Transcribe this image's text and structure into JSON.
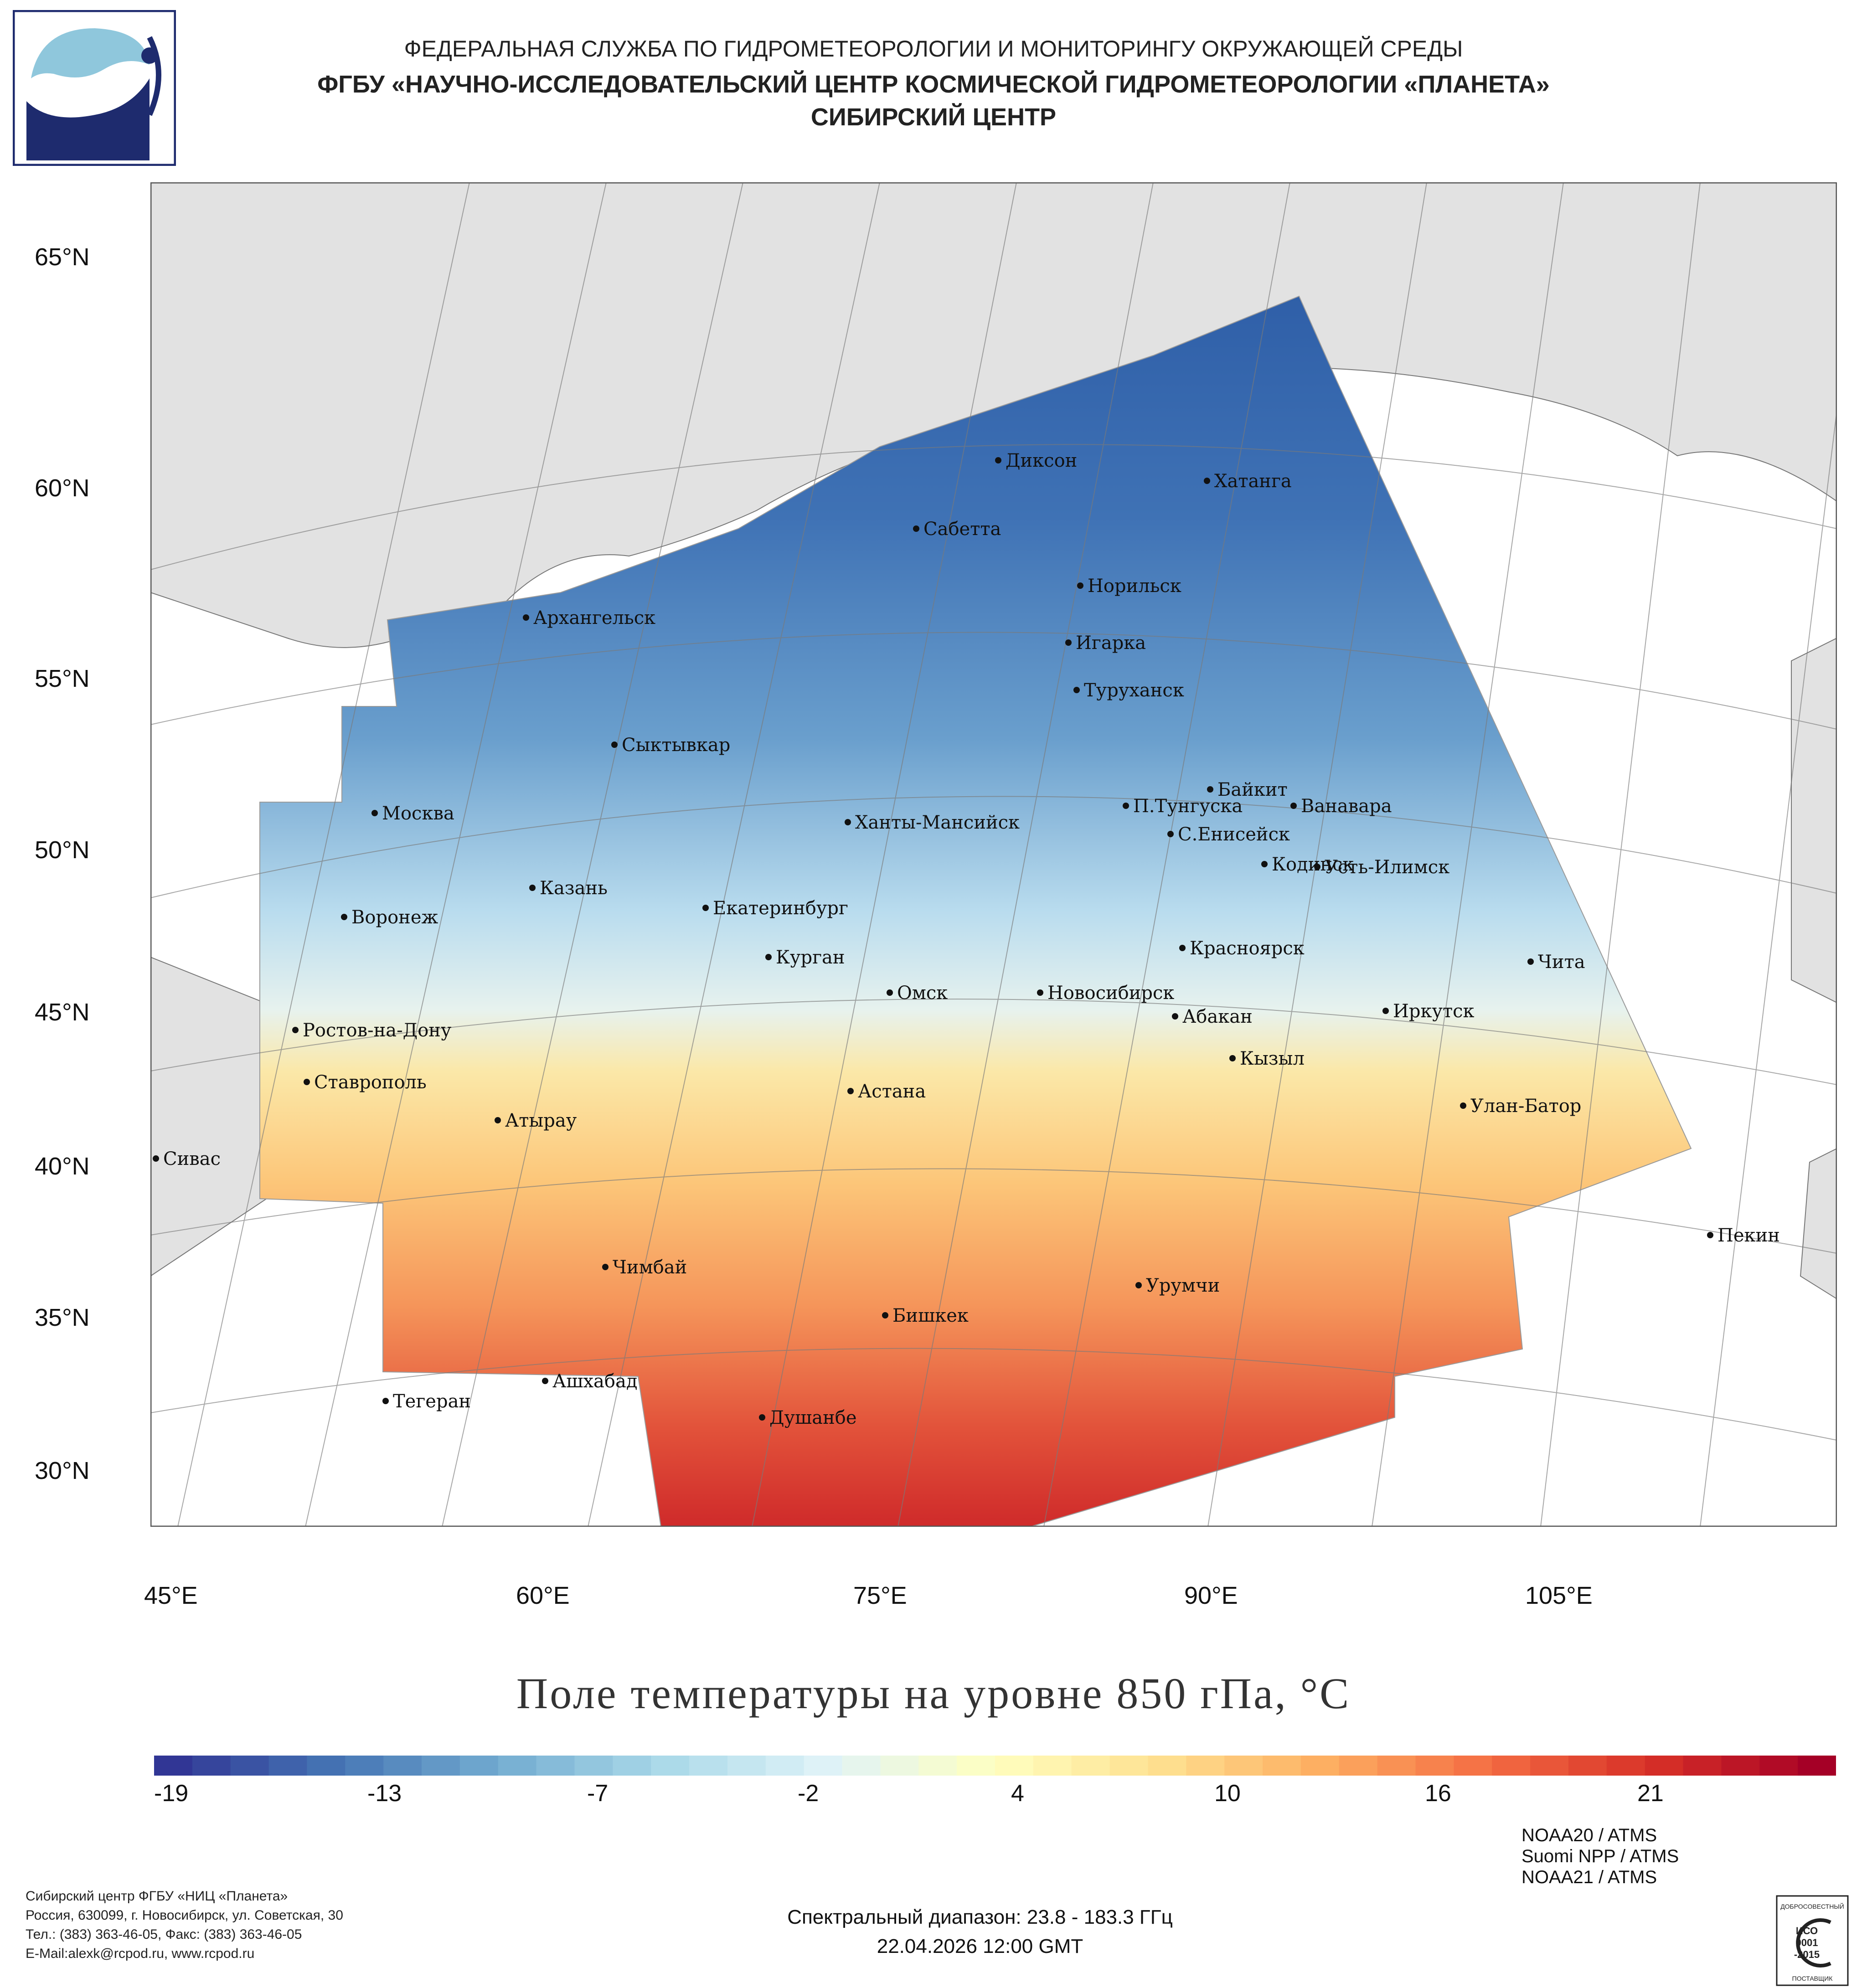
{
  "header": {
    "line1": "ФЕДЕРАЛЬНАЯ СЛУЖБА ПО ГИДРОМЕТЕОРОЛОГИИ И МОНИТОРИНГУ ОКРУЖАЮЩЕЙ СРЕДЫ",
    "line2": "ФГБУ «НАУЧНО-ИССЛЕДОВАТЕЛЬСКИЙ ЦЕНТР КОСМИЧЕСКОЙ ГИДРОМЕТЕОРОЛОГИИ «ПЛАНЕТА»",
    "line3": "СИБИРСКИЙ ЦЕНТР"
  },
  "map": {
    "lat_labels": [
      "65°N",
      "60°N",
      "55°N",
      "50°N",
      "45°N",
      "40°N",
      "35°N",
      "30°N"
    ],
    "lon_labels": [
      "45°E",
      "60°E",
      "75°E",
      "90°E",
      "105°E"
    ],
    "cities": [
      "Диксон",
      "Хатанга",
      "Сабетта",
      "Норильск",
      "Архангельск",
      "Игарка",
      "Туруханск",
      "Сыктывкар",
      "Байкит",
      "П.Тунгуска",
      "Ванавара",
      "Москва",
      "Ханты-Мансийск",
      "С.Енисейск",
      "Кодинск",
      "Усть-Илимск",
      "Казань",
      "Екатеринбург",
      "Воронеж",
      "Красноярск",
      "Курган",
      "Чита",
      "Омск",
      "Новосибирск",
      "Ростов-на-Дону",
      "Иркутск",
      "Абакан",
      "Кызыл",
      "Ставрополь",
      "Астана",
      "Улан-Батор",
      "Атырау",
      "Сивас",
      "Пекин",
      "Чимбай",
      "Урумчи",
      "Бишкек",
      "Ашхабад",
      "Тегеран",
      "Душанбе"
    ]
  },
  "title": "Поле температуры на уровне 850 гПа, °C",
  "colorbar": {
    "tick_labels": [
      "-19",
      "-13",
      "-7",
      "-2",
      "4",
      "10",
      "16",
      "21"
    ],
    "min": -20,
    "max": 24,
    "stops": [
      "#313695",
      "#4575b4",
      "#74add1",
      "#abd9e9",
      "#e0f3f8",
      "#ffffbf",
      "#fee090",
      "#fdae61",
      "#f46d43",
      "#d73027",
      "#a50026"
    ]
  },
  "footer": {
    "org_line1": "Сибирский центр ФГБУ «НИЦ «Планета»",
    "org_line2": "Россия, 630099, г. Новосибирск, ул. Советская, 30",
    "org_line3": "Тел.: (383) 363-46-05, Факс: (383) 363-46-05",
    "org_line4": "E-Mail:alexk@rcpod.ru, www.rcpod.ru",
    "spectral": "Спектральный диапазон: 23.8 - 183.3 ГГц",
    "datetime": "22.04.2026 12:00 GMT"
  },
  "satellites": [
    "NOAA20 / ATMS",
    "Suomi NPP / ATMS",
    "NOAA21 / ATMS"
  ],
  "iso_badge": {
    "top": "ДОБРОСОВЕСТНЫЙ",
    "mid1": "ИСО",
    "mid2": "9001",
    "mid3": "-2015",
    "bottom": "ПОСТАВЩИК"
  }
}
